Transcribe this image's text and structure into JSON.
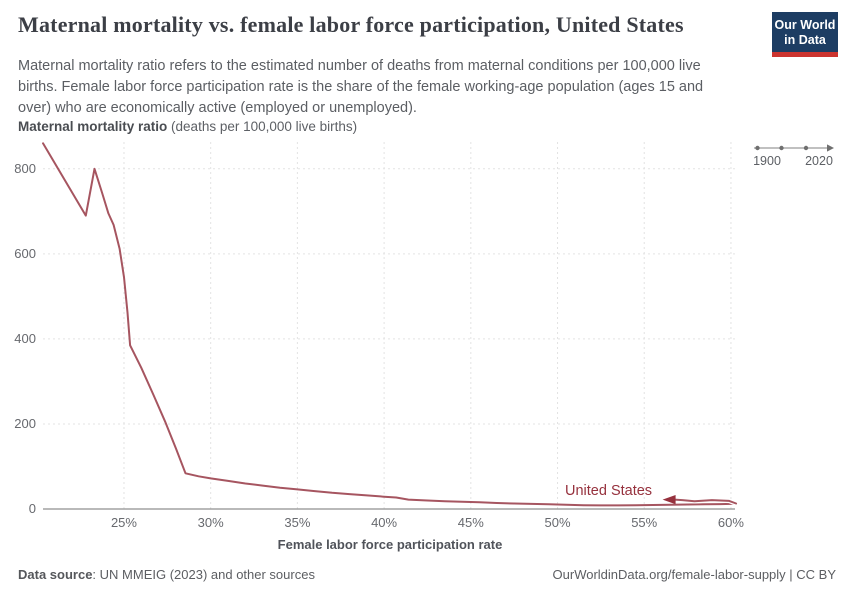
{
  "header": {
    "title": "Maternal mortality vs. female labor force participation, United States",
    "subtitle": "Maternal mortality ratio refers to the estimated number of deaths from maternal conditions per 100,000 live births. Female labor force participation rate is the share of the female working-age population (ages 15 and over) who are economically active (employed or unemployed).",
    "logo": {
      "line1": "Our World",
      "line2": "in Data",
      "bg_color": "#1d3d63",
      "stripe_color": "#cc342f"
    }
  },
  "chart_data": {
    "type": "line",
    "title": "Maternal mortality vs. female labor force participation, United States",
    "xlabel": "Female labor force participation rate",
    "ylabel": "Maternal mortality ratio (deaths per 100,000 live births)",
    "ylabel_bold": "Maternal mortality ratio",
    "ylabel_note": " (deaths per 100,000 live births)",
    "xlim": [
      20.33,
      60.35
    ],
    "ylim": [
      0,
      863
    ],
    "x_tick_values": [
      25,
      30,
      35,
      40,
      45,
      50,
      55,
      60
    ],
    "x_tick_labels": [
      "25%",
      "30%",
      "35%",
      "40%",
      "45%",
      "50%",
      "55%",
      "60%"
    ],
    "y_tick_values": [
      0,
      200,
      400,
      600,
      800
    ],
    "y_tick_labels": [
      "0",
      "200",
      "400",
      "600",
      "800"
    ],
    "grid": "dashed",
    "legend_position": "end-of-line-label",
    "time_legend": {
      "start": "1900",
      "end": "2020"
    },
    "series": [
      {
        "name": "United States",
        "color": "#a65560",
        "label_color": "#96313d",
        "direction_arrow": "left",
        "return_start_index": 48,
        "points": [
          [
            20.33,
            860
          ],
          [
            22.8,
            690
          ],
          [
            23.3,
            800
          ],
          [
            23.75,
            742
          ],
          [
            24.1,
            695
          ],
          [
            24.4,
            668
          ],
          [
            24.75,
            612
          ],
          [
            25.0,
            545
          ],
          [
            25.2,
            462
          ],
          [
            25.35,
            385
          ],
          [
            26.0,
            332
          ],
          [
            26.7,
            268
          ],
          [
            27.4,
            203
          ],
          [
            28.0,
            142
          ],
          [
            28.55,
            84
          ],
          [
            29.3,
            77
          ],
          [
            30.0,
            72
          ],
          [
            31.0,
            66
          ],
          [
            32.0,
            60
          ],
          [
            33.0,
            55
          ],
          [
            34.0,
            50
          ],
          [
            35.0,
            46
          ],
          [
            36.0,
            42
          ],
          [
            37.0,
            38
          ],
          [
            38.0,
            35
          ],
          [
            39.0,
            32
          ],
          [
            40.0,
            29
          ],
          [
            40.7,
            27
          ],
          [
            41.4,
            22
          ],
          [
            42.5,
            20
          ],
          [
            43.5,
            18
          ],
          [
            44.5,
            17
          ],
          [
            45.5,
            16
          ],
          [
            46.5,
            14
          ],
          [
            47.5,
            13
          ],
          [
            48.5,
            12
          ],
          [
            49.5,
            11
          ],
          [
            50.5,
            10
          ],
          [
            51.5,
            9
          ],
          [
            52.5,
            8.5
          ],
          [
            53.5,
            8.5
          ],
          [
            54.5,
            9
          ],
          [
            55.5,
            9.5
          ],
          [
            56.5,
            10
          ],
          [
            57.5,
            10.5
          ],
          [
            58.5,
            11
          ],
          [
            59.4,
            11.5
          ],
          [
            60.0,
            12
          ],
          [
            60.3,
            13
          ],
          [
            59.9,
            19
          ],
          [
            58.9,
            21
          ],
          [
            57.9,
            18
          ],
          [
            57.2,
            21
          ],
          [
            56.75,
            22
          ]
        ]
      }
    ]
  },
  "footer": {
    "data_source_label": "Data source",
    "data_source_rest": ": UN MMEIG (2023) and other sources",
    "credit": "OurWorldinData.org/female-labor-supply | CC BY"
  }
}
